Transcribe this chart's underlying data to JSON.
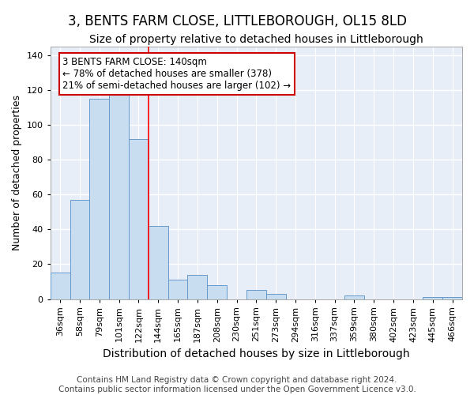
{
  "title": "3, BENTS FARM CLOSE, LITTLEBOROUGH, OL15 8LD",
  "subtitle": "Size of property relative to detached houses in Littleborough",
  "xlabel": "Distribution of detached houses by size in Littleborough",
  "ylabel": "Number of detached properties",
  "categories": [
    "36sqm",
    "58sqm",
    "79sqm",
    "101sqm",
    "122sqm",
    "144sqm",
    "165sqm",
    "187sqm",
    "208sqm",
    "230sqm",
    "251sqm",
    "273sqm",
    "294sqm",
    "316sqm",
    "337sqm",
    "359sqm",
    "380sqm",
    "402sqm",
    "423sqm",
    "445sqm",
    "466sqm"
  ],
  "values": [
    15,
    57,
    115,
    118,
    92,
    42,
    11,
    14,
    8,
    0,
    5,
    3,
    0,
    0,
    0,
    2,
    0,
    0,
    0,
    1,
    1
  ],
  "bar_color": "#c8ddf0",
  "bar_edge_color": "#6699cc",
  "red_line_index": 5,
  "annotation_text": "3 BENTS FARM CLOSE: 140sqm\n← 78% of detached houses are smaller (378)\n21% of semi-detached houses are larger (102) →",
  "annotation_box_color": "#ffffff",
  "annotation_box_edge_color": "#cc0000",
  "ylim": [
    0,
    145
  ],
  "yticks": [
    0,
    20,
    40,
    60,
    80,
    100,
    120,
    140
  ],
  "footer": "Contains HM Land Registry data © Crown copyright and database right 2024.\nContains public sector information licensed under the Open Government Licence v3.0.",
  "background_color": "#ffffff",
  "plot_background": "#e8eef8",
  "grid_color": "#ffffff",
  "title_fontsize": 12,
  "subtitle_fontsize": 10,
  "xlabel_fontsize": 10,
  "ylabel_fontsize": 9,
  "footer_fontsize": 7.5,
  "tick_fontsize": 8
}
